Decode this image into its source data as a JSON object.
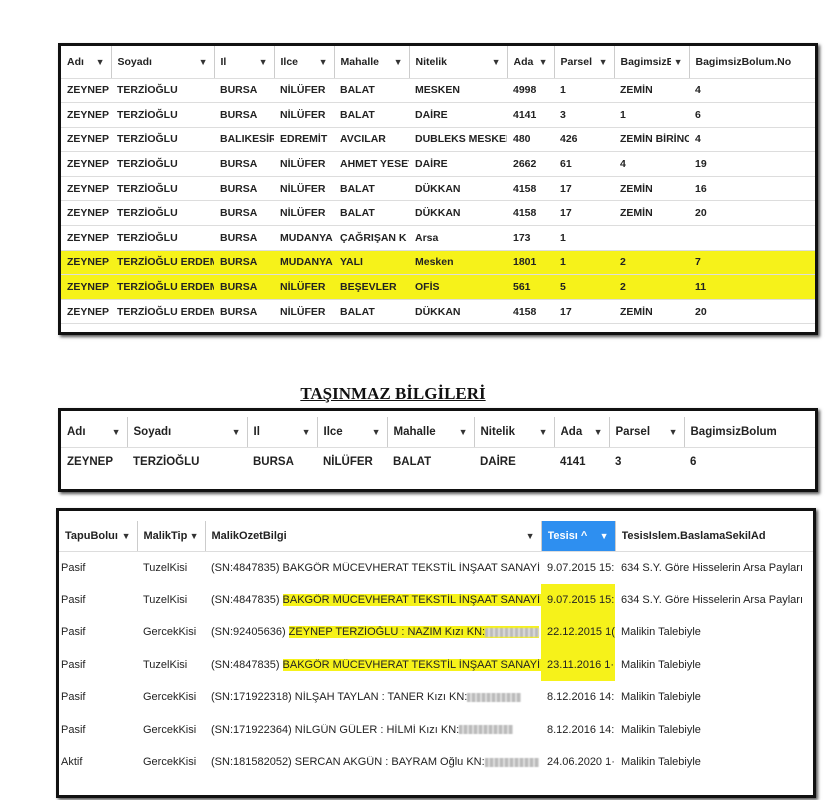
{
  "table1": {
    "columns": [
      "Adı",
      "Soyadı",
      "Il",
      "Ilce",
      "Mahalle",
      "Nitelik",
      "Ada",
      "Parsel",
      "BagimsizBı",
      "BagimsizBolum.No"
    ],
    "rows": [
      [
        "ZEYNEP",
        "TERZİOĞLU",
        "BURSA",
        "NİLÜFER",
        "BALAT",
        "MESKEN",
        "4998",
        "1",
        "ZEMİN",
        "4"
      ],
      [
        "ZEYNEP",
        "TERZİOĞLU",
        "BURSA",
        "NİLÜFER",
        "BALAT",
        "DAİRE",
        "4141",
        "3",
        "1",
        "6"
      ],
      [
        "ZEYNEP",
        "TERZİOĞLU",
        "BALIKESİR",
        "EDREMİT",
        "AVCILAR",
        "DUBLEKS MESKEN",
        "480",
        "426",
        "ZEMİN BİRİNCİ",
        "4"
      ],
      [
        "ZEYNEP",
        "TERZİOĞLU",
        "BURSA",
        "NİLÜFER",
        "AHMET YESEVİ",
        "DAİRE",
        "2662",
        "61",
        "4",
        "19"
      ],
      [
        "ZEYNEP",
        "TERZİOĞLU",
        "BURSA",
        "NİLÜFER",
        "BALAT",
        "DÜKKAN",
        "4158",
        "17",
        "ZEMİN",
        "16"
      ],
      [
        "ZEYNEP",
        "TERZİOĞLU",
        "BURSA",
        "NİLÜFER",
        "BALAT",
        "DÜKKAN",
        "4158",
        "17",
        "ZEMİN",
        "20"
      ],
      [
        "ZEYNEP",
        "TERZİOĞLU",
        "BURSA",
        "MUDANYA",
        "ÇAĞRIŞAN K",
        "Arsa",
        "173",
        "1",
        "",
        ""
      ],
      [
        "ZEYNEP",
        "TERZİOĞLU ERDEM",
        "BURSA",
        "MUDANYA",
        "YALI",
        "Mesken",
        "1801",
        "1",
        "2",
        "7"
      ],
      [
        "ZEYNEP",
        "TERZİOĞLU ERDEM",
        "BURSA",
        "NİLÜFER",
        "BEŞEVLER",
        "OFİS",
        "561",
        "5",
        "2",
        "11"
      ],
      [
        "ZEYNEP",
        "TERZİOĞLU ERDEM",
        "BURSA",
        "NİLÜFER",
        "BALAT",
        "DÜKKAN",
        "4158",
        "17",
        "ZEMİN",
        "20"
      ]
    ],
    "highlighted_rows": [
      7,
      8
    ]
  },
  "section_title": "TAŞINMAZ BİLGİLERİ",
  "table2": {
    "columns": [
      "Adı",
      "Soyadı",
      "Il",
      "Ilce",
      "Mahalle",
      "Nitelik",
      "Ada",
      "Parsel",
      "BagimsizBolum"
    ],
    "rows": [
      [
        "ZEYNEP",
        "TERZİOĞLU",
        "BURSA",
        "NİLÜFER",
        "BALAT",
        "DAİRE",
        "4141",
        "3",
        "6"
      ]
    ]
  },
  "table3": {
    "columns": [
      "TapuBoluı",
      "MalikTip",
      "MalikOzetBilgi",
      "Tesisı ^",
      "TesisIslem.BaslamaSekilAd"
    ],
    "active_column": 3,
    "active_color": "#2e8ff0",
    "rows": [
      {
        "tapu": "Pasif",
        "tip": "TuzelKisi",
        "sn": "(SN:4847835) ",
        "ozet": "BAKGÖR MÜCEVHERAT TEKSTİL İNŞAAT SANAYİ VE TİCAF",
        "masked": false,
        "tarih": "9.07.2015 15:",
        "sekil": "634 S.Y. Göre Hisselerin Arsa Payları",
        "hl": false
      },
      {
        "tapu": "Pasif",
        "tip": "TuzelKisi",
        "sn": "(SN:4847835) ",
        "ozet": "BAKGÖR MÜCEVHERAT TEKSTİL İNŞAAT SANAYİ VE TİCAF",
        "masked": false,
        "tarih": "9.07.2015 15:",
        "sekil": "634 S.Y. Göre Hisselerin Arsa Payları",
        "hl": true
      },
      {
        "tapu": "Pasif",
        "tip": "GercekKisi",
        "sn": "(SN:92405636) ",
        "ozet": "ZEYNEP TERZİOĞLU : NAZIM Kızı KN:",
        "masked": true,
        "tarih": "22.12.2015 1(",
        "sekil": "Malikin Talebiyle",
        "hl": true
      },
      {
        "tapu": "Pasif",
        "tip": "TuzelKisi",
        "sn": "(SN:4847835) ",
        "ozet": "BAKGÖR MÜCEVHERAT TEKSTİL İNŞAAT SANAYİ VE TİCAF",
        "masked": false,
        "tarih": "23.11.2016 1·",
        "sekil": "Malikin Talebiyle",
        "hl": true
      },
      {
        "tapu": "Pasif",
        "tip": "GercekKisi",
        "sn": "(SN:171922318) ",
        "ozet": "NİLŞAH TAYLAN : TANER Kızı KN:",
        "masked": true,
        "tarih": "8.12.2016 14:",
        "sekil": "Malikin Talebiyle",
        "hl": false
      },
      {
        "tapu": "Pasif",
        "tip": "GercekKisi",
        "sn": "(SN:171922364) ",
        "ozet": "NİLGÜN GÜLER : HİLMİ Kızı KN:",
        "masked": true,
        "tarih": "8.12.2016 14:",
        "sekil": "Malikin Talebiyle",
        "hl": false
      },
      {
        "tapu": "Aktif",
        "tip": "GercekKisi",
        "sn": "(SN:181582052) ",
        "ozet": "SERCAN AKGÜN : BAYRAM Oğlu KN:",
        "masked": true,
        "tarih": "24.06.2020 1·",
        "sekil": "Malikin Talebiyle",
        "hl": false
      }
    ],
    "highlight_color": "#f6f21a"
  }
}
